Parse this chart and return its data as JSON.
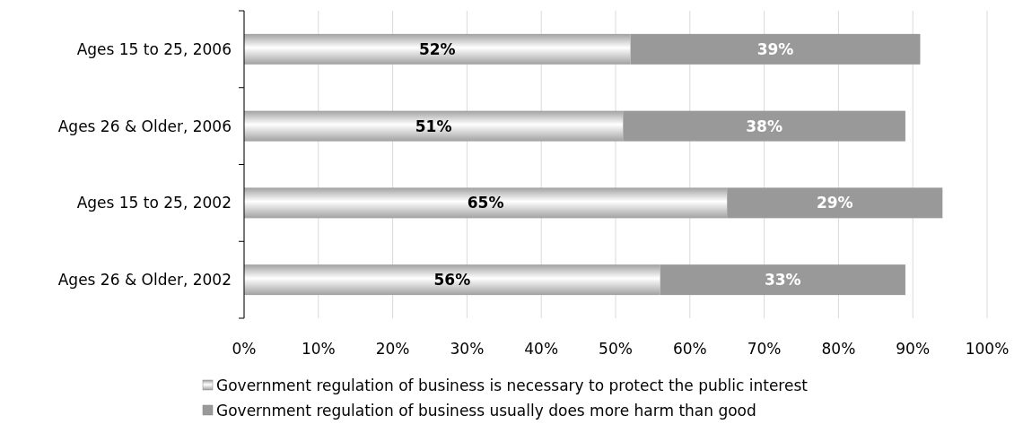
{
  "chart_data": {
    "type": "bar",
    "orientation": "horizontal",
    "stacked": true,
    "categories": [
      "Ages 15 to 25, 2006",
      "Ages 26 & Older, 2006",
      "Ages 15 to 25, 2002",
      "Ages 26 & Older, 2002"
    ],
    "series": [
      {
        "name": "Government regulation of business is necessary to protect the public interest",
        "color": "#c8c8c8",
        "values": [
          52,
          51,
          65,
          56
        ],
        "value_labels": [
          "52%",
          "51%",
          "65%",
          "56%"
        ]
      },
      {
        "name": "Government regulation of business usually does more harm than good",
        "color": "#999999",
        "values": [
          39,
          38,
          29,
          33
        ],
        "value_labels": [
          "39%",
          "38%",
          "29%",
          "33%"
        ]
      }
    ],
    "xlim": [
      0,
      100
    ],
    "xticks": [
      {
        "value": 0,
        "label": "0%"
      },
      {
        "value": 10,
        "label": "10%"
      },
      {
        "value": 20,
        "label": "20%"
      },
      {
        "value": 30,
        "label": "30%"
      },
      {
        "value": 40,
        "label": "40%"
      },
      {
        "value": 50,
        "label": "50%"
      },
      {
        "value": 60,
        "label": "60%"
      },
      {
        "value": 70,
        "label": "70%"
      },
      {
        "value": 80,
        "label": "80%"
      },
      {
        "value": 90,
        "label": "90%"
      },
      {
        "value": 100,
        "label": "100%"
      }
    ],
    "grid": "x",
    "legend": "bottom"
  }
}
